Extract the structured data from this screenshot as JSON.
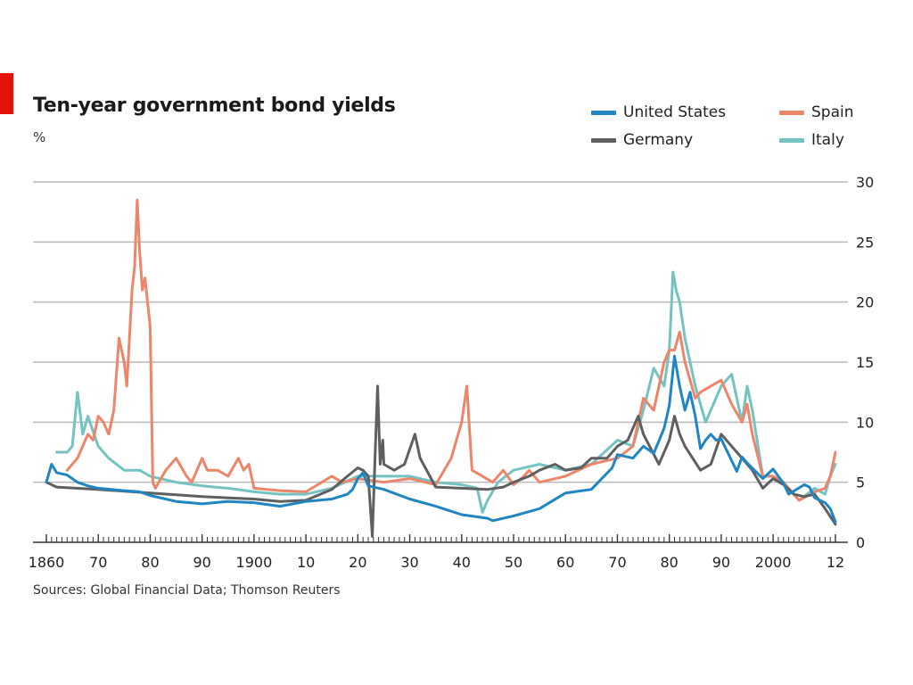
{
  "header": {
    "title": "Ten-year government bond yields",
    "unit": "%"
  },
  "footer": {
    "source": "Sources: Global Financial Data; Thomson Reuters"
  },
  "colors": {
    "accent": "#e3120b",
    "united_states": "#1f86c3",
    "germany": "#5f5f5f",
    "spain": "#ec8569",
    "italy": "#74c3c2",
    "grid": "#b9b9b9",
    "axis": "#333333"
  },
  "chart_data": {
    "type": "line",
    "title": "Ten-year government bond yields",
    "ylabel": "%",
    "xlim": [
      1858,
      2013
    ],
    "ylim": [
      0,
      30
    ],
    "yticks": [
      0,
      5,
      10,
      15,
      20,
      25,
      30
    ],
    "xticks": [
      1860,
      1870,
      1880,
      1890,
      1900,
      1910,
      1920,
      1930,
      1940,
      1950,
      1960,
      1970,
      1980,
      1990,
      2000,
      2012
    ],
    "xtick_labels": [
      "1860",
      "70",
      "80",
      "90",
      "1900",
      "10",
      "20",
      "30",
      "40",
      "50",
      "60",
      "70",
      "80",
      "90",
      "2000",
      "12"
    ],
    "y_axis_side": "right",
    "grid": true,
    "legend_position": "top-right",
    "series": [
      {
        "name": "United States",
        "color_key": "united_states",
        "x": [
          1860,
          1861,
          1862,
          1864,
          1866,
          1868,
          1870,
          1875,
          1878,
          1880,
          1885,
          1890,
          1895,
          1900,
          1905,
          1910,
          1915,
          1918,
          1919,
          1920,
          1921,
          1922,
          1925,
          1930,
          1935,
          1940,
          1945,
          1946,
          1950,
          1955,
          1960,
          1965,
          1969,
          1970,
          1973,
          1975,
          1977,
          1979,
          1980,
          1981,
          1982,
          1983,
          1984,
          1985,
          1986,
          1987,
          1988,
          1989,
          1990,
          1993,
          1994,
          1995,
          1998,
          2000,
          2002,
          2003,
          2006,
          2007,
          2008,
          2010,
          2011,
          2012
        ],
        "values": [
          5.0,
          6.5,
          5.8,
          5.6,
          5.0,
          4.7,
          4.5,
          4.3,
          4.2,
          3.9,
          3.4,
          3.2,
          3.4,
          3.3,
          3.0,
          3.4,
          3.6,
          4.0,
          4.4,
          5.3,
          5.8,
          4.7,
          4.4,
          3.6,
          3.0,
          2.3,
          2.0,
          1.8,
          2.2,
          2.8,
          4.1,
          4.4,
          6.2,
          7.3,
          7.0,
          8.0,
          7.4,
          9.5,
          11.4,
          15.5,
          13.0,
          11.0,
          12.5,
          10.5,
          7.8,
          8.5,
          9.0,
          8.5,
          8.6,
          5.9,
          7.1,
          6.6,
          5.3,
          6.1,
          4.9,
          4.0,
          4.8,
          4.6,
          3.7,
          3.3,
          2.8,
          1.7
        ]
      },
      {
        "name": "Germany",
        "color_key": "germany",
        "x": [
          1860,
          1862,
          1870,
          1880,
          1890,
          1900,
          1905,
          1910,
          1915,
          1918,
          1920,
          1921,
          1922,
          1922.8,
          1923.3,
          1923.8,
          1924.3,
          1924.8,
          1925,
          1927,
          1929,
          1931,
          1932,
          1935,
          1940,
          1945,
          1948,
          1950,
          1953,
          1955,
          1958,
          1960,
          1963,
          1965,
          1968,
          1970,
          1972,
          1974,
          1975,
          1978,
          1980,
          1981,
          1982,
          1983,
          1986,
          1988,
          1990,
          1992,
          1994,
          1996,
          1998,
          2000,
          2002,
          2004,
          2006,
          2008,
          2010,
          2012
        ],
        "values": [
          5.0,
          4.6,
          4.4,
          4.1,
          3.8,
          3.6,
          3.4,
          3.5,
          4.4,
          5.5,
          6.2,
          6.0,
          5.5,
          0.5,
          7.0,
          13.0,
          6.5,
          8.5,
          6.5,
          6.0,
          6.5,
          9.0,
          7.0,
          4.6,
          4.5,
          4.4,
          4.6,
          5.0,
          5.5,
          6.0,
          6.5,
          6.0,
          6.2,
          7.0,
          7.0,
          8.0,
          8.5,
          10.5,
          9.0,
          6.5,
          8.5,
          10.5,
          9.0,
          8.0,
          6.0,
          6.5,
          9.0,
          8.0,
          7.0,
          6.0,
          4.5,
          5.3,
          4.8,
          4.0,
          3.8,
          4.0,
          2.8,
          1.5
        ]
      },
      {
        "name": "Spain",
        "color_key": "spain",
        "x": [
          1864,
          1866,
          1868,
          1869,
          1870,
          1871,
          1872,
          1873,
          1874,
          1875,
          1875.5,
          1876,
          1876.5,
          1877,
          1877.5,
          1878,
          1878.5,
          1879,
          1880,
          1880.5,
          1881,
          1883,
          1885,
          1887,
          1888,
          1890,
          1891,
          1893,
          1895,
          1897,
          1898,
          1899,
          1900,
          1905,
          1910,
          1915,
          1917,
          1920,
          1925,
          1930,
          1935,
          1938,
          1940,
          1941,
          1942,
          1944,
          1946,
          1948,
          1950,
          1952,
          1953,
          1955,
          1960,
          1965,
          1970,
          1973,
          1975,
          1977,
          1979,
          1980,
          1981,
          1982,
          1983,
          1985,
          1986,
          1988,
          1990,
          1992,
          1994,
          1995,
          1996,
          1998,
          2000,
          2002,
          2005,
          2008,
          2010,
          2011,
          2012
        ],
        "values": [
          6.0,
          7.0,
          9.0,
          8.5,
          10.5,
          10.0,
          9.0,
          11.0,
          17.0,
          15.0,
          13.0,
          17.0,
          21.0,
          23.0,
          28.5,
          24.0,
          21.0,
          22.0,
          18.0,
          5.0,
          4.5,
          6.0,
          7.0,
          5.5,
          5.0,
          7.0,
          6.0,
          6.0,
          5.5,
          7.0,
          6.0,
          6.5,
          4.5,
          4.3,
          4.2,
          5.5,
          5.0,
          5.3,
          5.0,
          5.3,
          4.8,
          7.0,
          10.0,
          13.0,
          6.0,
          5.5,
          5.0,
          6.0,
          4.8,
          5.5,
          6.0,
          5.0,
          5.5,
          6.5,
          7.0,
          8.0,
          12.0,
          11.0,
          15.0,
          16.0,
          16.0,
          17.5,
          15.0,
          12.0,
          12.5,
          13.0,
          13.5,
          11.5,
          10.0,
          11.5,
          9.0,
          5.5,
          5.5,
          5.0,
          3.5,
          4.2,
          4.5,
          5.5,
          7.5
        ]
      },
      {
        "name": "Italy",
        "color_key": "italy",
        "x": [
          1862,
          1864,
          1865,
          1866,
          1867,
          1868,
          1870,
          1872,
          1875,
          1878,
          1880,
          1885,
          1890,
          1895,
          1900,
          1905,
          1910,
          1915,
          1920,
          1925,
          1930,
          1935,
          1940,
          1943,
          1944,
          1945,
          1947,
          1950,
          1955,
          1960,
          1965,
          1970,
          1973,
          1975,
          1977,
          1979,
          1980,
          1980.7,
          1981.3,
          1982,
          1983,
          1985,
          1987,
          1990,
          1992,
          1993,
          1994,
          1995,
          1996,
          1998,
          2000,
          2002,
          2005,
          2008,
          2010,
          2011,
          2012
        ],
        "values": [
          7.5,
          7.5,
          8.0,
          12.5,
          9.0,
          10.5,
          8.0,
          7.0,
          6.0,
          6.0,
          5.5,
          5.0,
          4.7,
          4.5,
          4.2,
          4.0,
          4.0,
          4.5,
          5.5,
          5.5,
          5.5,
          5.0,
          4.8,
          4.5,
          2.5,
          3.5,
          5.0,
          6.0,
          6.5,
          6.0,
          6.5,
          8.5,
          8.0,
          11.0,
          14.5,
          13.0,
          16.0,
          22.5,
          21.0,
          20.0,
          17.0,
          13.0,
          10.0,
          13.0,
          14.0,
          12.0,
          10.0,
          13.0,
          11.0,
          5.5,
          5.5,
          5.0,
          3.5,
          4.5,
          4.0,
          5.5,
          6.5
        ]
      }
    ]
  }
}
